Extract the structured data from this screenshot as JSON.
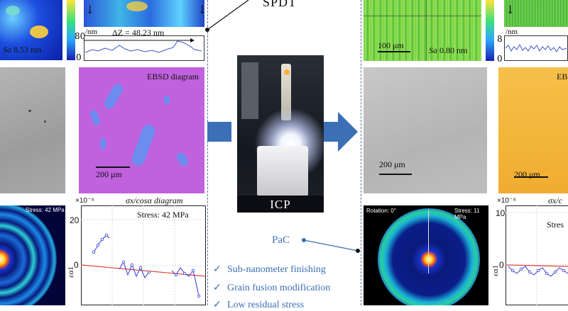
{
  "left": {
    "sa_label": "Sa",
    "sa_value": "8.53 nm",
    "colorbar_top": "80",
    "colorbar_bottom": "0",
    "profile_unit": "/nm",
    "profile_delta": "ΔZ = 48.23 nm",
    "ebsd_title": "EBSD diagram",
    "scale_micro": "200 μm",
    "scale_ebsd": "200 μm",
    "xrd_stress": "Stress: 42 MPa",
    "plot_exponent": "×10⁻⁴",
    "plot_title": "σx/cosα diagram",
    "plot_stress": "Stress: 42 MPa",
    "plot_y_top": "20",
    "plot_y_zero": "0",
    "plot_ylabel": "εα1"
  },
  "center": {
    "top_label": "SPDT",
    "machine_label": "ICP",
    "pac_label": "PaC",
    "benefits": [
      "Sub-nanometer finishing",
      "Grain fusion modification",
      "Low residual stress"
    ],
    "check_glyph": "✓"
  },
  "right": {
    "scale_topo": "100 μm",
    "sa_label": "Sa",
    "sa_value": "0.80 nm",
    "colorbar_top": "8",
    "colorbar_bottom": "0",
    "profile_unit": "/nm",
    "scale_micro": "200 μm",
    "ebsd_title": "EB",
    "scale_ebsd": "200 μm",
    "xrd_rotation": "Rotation: 0°",
    "xrd_stress": "Stress: 11 MPa",
    "plot_exponent": "×10⁻⁴",
    "plot_title": "σx/c",
    "plot_stress": "Stres",
    "plot_y_top": "10",
    "plot_y_zero": "0",
    "plot_ylabel": "εα1"
  },
  "colors": {
    "arrow": "#3b6fb6",
    "dash": "#5a6f9a",
    "ebsd_left": "#b36ad6",
    "ebsd_right": "#f2b23a",
    "trend_line": "#e0413b",
    "data_points": "#2f3fd0"
  }
}
